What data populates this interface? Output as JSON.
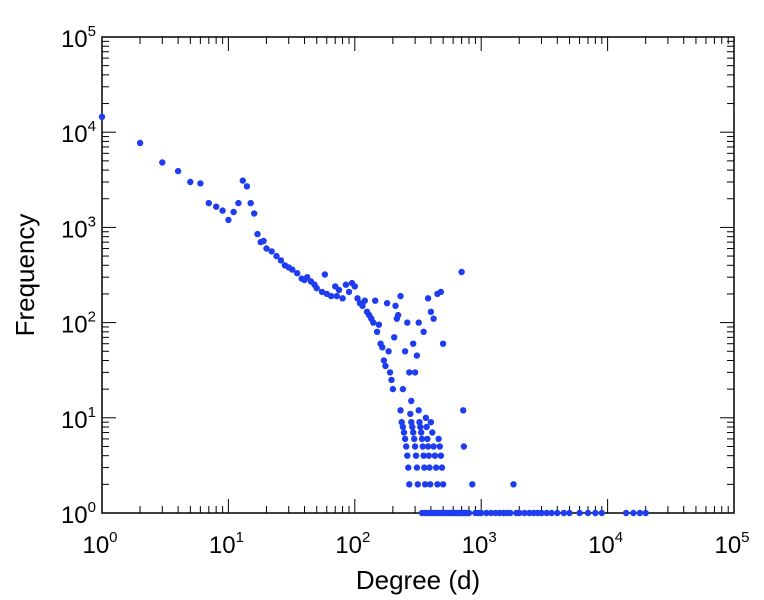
{
  "chart_data": {
    "type": "scatter",
    "xlabel": "Degree (d)",
    "ylabel": "Frequency",
    "x_scale": "log",
    "y_scale": "log",
    "xlim": [
      1,
      100000
    ],
    "ylim": [
      1,
      100000
    ],
    "x_ticks": [
      {
        "base": "10",
        "exp": "0"
      },
      {
        "base": "10",
        "exp": "1"
      },
      {
        "base": "10",
        "exp": "2"
      },
      {
        "base": "10",
        "exp": "3"
      },
      {
        "base": "10",
        "exp": "4"
      },
      {
        "base": "10",
        "exp": "5"
      }
    ],
    "y_ticks": [
      {
        "base": "10",
        "exp": "0"
      },
      {
        "base": "10",
        "exp": "1"
      },
      {
        "base": "10",
        "exp": "2"
      },
      {
        "base": "10",
        "exp": "3"
      },
      {
        "base": "10",
        "exp": "4"
      },
      {
        "base": "10",
        "exp": "5"
      }
    ],
    "grid": false,
    "marker_color": "#1f3df0",
    "points": [
      [
        1,
        14500
      ],
      [
        2,
        7700
      ],
      [
        3,
        4800
      ],
      [
        4,
        3900
      ],
      [
        5,
        3000
      ],
      [
        6,
        2900
      ],
      [
        7,
        1800
      ],
      [
        8,
        1650
      ],
      [
        9,
        1500
      ],
      [
        10,
        1200
      ],
      [
        11,
        1450
      ],
      [
        12,
        1800
      ],
      [
        13,
        3100
      ],
      [
        14,
        2700
      ],
      [
        15,
        1800
      ],
      [
        16,
        1400
      ],
      [
        17,
        850
      ],
      [
        18,
        700
      ],
      [
        19,
        720
      ],
      [
        20,
        600
      ],
      [
        22,
        560
      ],
      [
        24,
        500
      ],
      [
        26,
        450
      ],
      [
        28,
        400
      ],
      [
        30,
        380
      ],
      [
        32,
        360
      ],
      [
        35,
        330
      ],
      [
        38,
        290
      ],
      [
        40,
        280
      ],
      [
        42,
        300
      ],
      [
        45,
        270
      ],
      [
        48,
        250
      ],
      [
        50,
        230
      ],
      [
        55,
        210
      ],
      [
        58,
        320
      ],
      [
        60,
        200
      ],
      [
        65,
        190
      ],
      [
        70,
        240
      ],
      [
        72,
        190
      ],
      [
        75,
        220
      ],
      [
        80,
        180
      ],
      [
        85,
        250
      ],
      [
        90,
        210
      ],
      [
        95,
        260
      ],
      [
        100,
        240
      ],
      [
        105,
        180
      ],
      [
        110,
        160
      ],
      [
        115,
        150
      ],
      [
        120,
        170
      ],
      [
        125,
        130
      ],
      [
        130,
        120
      ],
      [
        135,
        110
      ],
      [
        140,
        100
      ],
      [
        145,
        170
      ],
      [
        150,
        80
      ],
      [
        155,
        95
      ],
      [
        160,
        60
      ],
      [
        165,
        55
      ],
      [
        170,
        40
      ],
      [
        175,
        35
      ],
      [
        180,
        160
      ],
      [
        185,
        50
      ],
      [
        190,
        30
      ],
      [
        195,
        25
      ],
      [
        200,
        20
      ],
      [
        205,
        70
      ],
      [
        210,
        150
      ],
      [
        215,
        110
      ],
      [
        220,
        120
      ],
      [
        230,
        190
      ],
      [
        240,
        20
      ],
      [
        250,
        50
      ],
      [
        260,
        100
      ],
      [
        270,
        30
      ],
      [
        280,
        15
      ],
      [
        290,
        60
      ],
      [
        300,
        30
      ],
      [
        310,
        45
      ],
      [
        320,
        100
      ],
      [
        350,
        80
      ],
      [
        380,
        180
      ],
      [
        400,
        130
      ],
      [
        420,
        110
      ],
      [
        450,
        200
      ],
      [
        480,
        210
      ],
      [
        500,
        60
      ],
      [
        700,
        340
      ],
      [
        720,
        12
      ],
      [
        730,
        5
      ],
      [
        230,
        12
      ],
      [
        235,
        9
      ],
      [
        240,
        8
      ],
      [
        245,
        7
      ],
      [
        250,
        6
      ],
      [
        255,
        5
      ],
      [
        260,
        4
      ],
      [
        265,
        3
      ],
      [
        270,
        2
      ],
      [
        275,
        11
      ],
      [
        280,
        9
      ],
      [
        285,
        8
      ],
      [
        290,
        7
      ],
      [
        295,
        6
      ],
      [
        300,
        5
      ],
      [
        305,
        4
      ],
      [
        310,
        3
      ],
      [
        315,
        2
      ],
      [
        320,
        12
      ],
      [
        325,
        9
      ],
      [
        330,
        8
      ],
      [
        335,
        7
      ],
      [
        340,
        6
      ],
      [
        345,
        5
      ],
      [
        350,
        4
      ],
      [
        355,
        3
      ],
      [
        360,
        2
      ],
      [
        365,
        10
      ],
      [
        370,
        8
      ],
      [
        375,
        6
      ],
      [
        380,
        5
      ],
      [
        385,
        4
      ],
      [
        390,
        3
      ],
      [
        395,
        2
      ],
      [
        400,
        9
      ],
      [
        410,
        7
      ],
      [
        420,
        5
      ],
      [
        430,
        4
      ],
      [
        440,
        3
      ],
      [
        450,
        2
      ],
      [
        460,
        6
      ],
      [
        470,
        5
      ],
      [
        480,
        4
      ],
      [
        490,
        3
      ],
      [
        500,
        2
      ],
      [
        340,
        1
      ],
      [
        360,
        1
      ],
      [
        380,
        1
      ],
      [
        400,
        1
      ],
      [
        420,
        1
      ],
      [
        440,
        1
      ],
      [
        460,
        1
      ],
      [
        480,
        1
      ],
      [
        500,
        1
      ],
      [
        520,
        1
      ],
      [
        540,
        1
      ],
      [
        560,
        1
      ],
      [
        580,
        1
      ],
      [
        600,
        1
      ],
      [
        620,
        1
      ],
      [
        640,
        1
      ],
      [
        660,
        1
      ],
      [
        680,
        1
      ],
      [
        700,
        1
      ],
      [
        720,
        1
      ],
      [
        740,
        1
      ],
      [
        760,
        1
      ],
      [
        780,
        1
      ],
      [
        800,
        1
      ],
      [
        850,
        2
      ],
      [
        900,
        1
      ],
      [
        950,
        1
      ],
      [
        1000,
        1
      ],
      [
        1100,
        1
      ],
      [
        1200,
        1
      ],
      [
        1300,
        1
      ],
      [
        1400,
        1
      ],
      [
        1500,
        1
      ],
      [
        1600,
        1
      ],
      [
        1700,
        1
      ],
      [
        1800,
        2
      ],
      [
        1900,
        1
      ],
      [
        2000,
        1
      ],
      [
        2200,
        1
      ],
      [
        2400,
        1
      ],
      [
        2600,
        1
      ],
      [
        2800,
        1
      ],
      [
        3000,
        1
      ],
      [
        3300,
        1
      ],
      [
        3600,
        1
      ],
      [
        4000,
        1
      ],
      [
        4500,
        1
      ],
      [
        5000,
        1
      ],
      [
        6000,
        1
      ],
      [
        7000,
        1
      ],
      [
        8000,
        1
      ],
      [
        9000,
        1
      ],
      [
        14000,
        1
      ],
      [
        16000,
        1
      ],
      [
        18000,
        1
      ],
      [
        20000,
        1
      ]
    ]
  }
}
